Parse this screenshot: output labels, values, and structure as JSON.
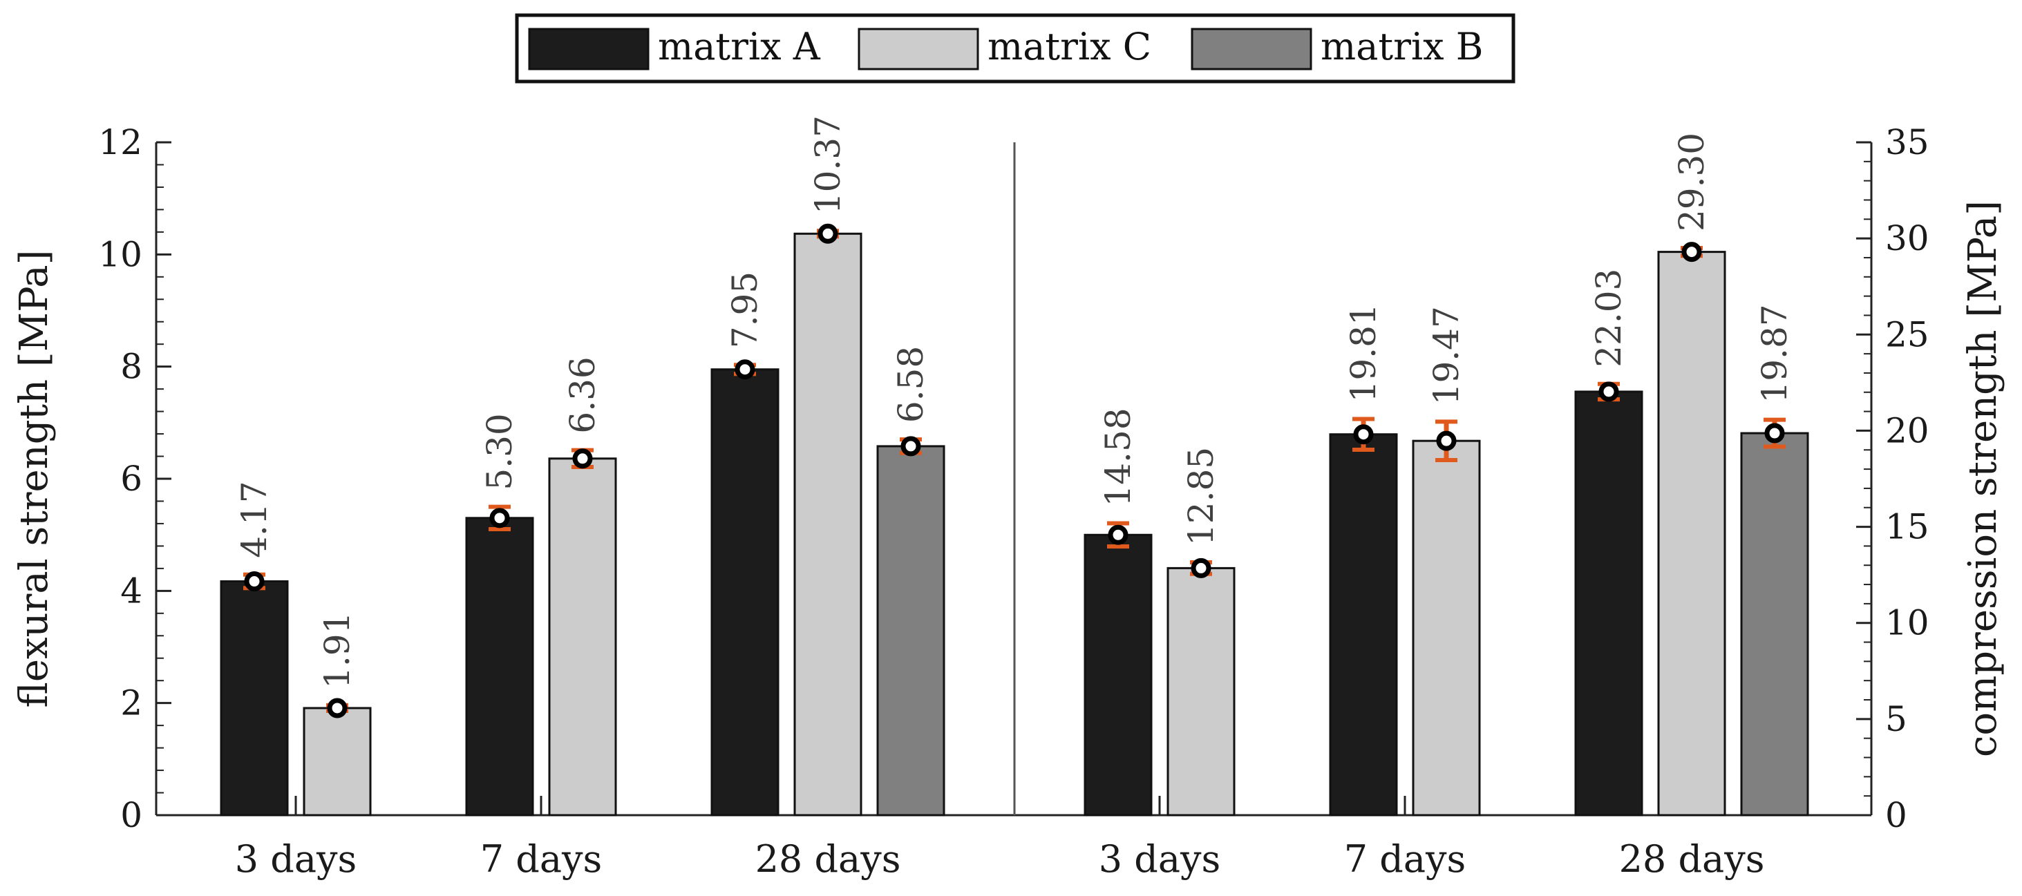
{
  "chart_data": {
    "type": "bar",
    "legend": {
      "placement": "top-center",
      "entries": [
        {
          "name": "matrix A",
          "color": "#1c1c1c"
        },
        {
          "name": "matrix C",
          "color": "#cccccc"
        },
        {
          "name": "matrix B",
          "color": "#808080"
        }
      ]
    },
    "series_order": [
      "matrix A",
      "matrix C",
      "matrix B"
    ],
    "error_bar_color": "#e05a1e",
    "panels": [
      {
        "name": "flexural",
        "axis": "left",
        "ylabel": "flexural strength [MPa]",
        "ylim": [
          0,
          12
        ],
        "yticks": [
          0,
          2,
          4,
          6,
          8,
          10,
          12
        ],
        "minor_step": 0.4,
        "categories": [
          "3 days",
          "7 days",
          "28 days"
        ],
        "groups": [
          {
            "category": "3 days",
            "bars": [
              {
                "series": "matrix A",
                "value": 4.17,
                "label": "4.17",
                "err": 0.12
              },
              {
                "series": "matrix C",
                "value": 1.91,
                "label": "1.91",
                "err": 0.05
              }
            ]
          },
          {
            "category": "7 days",
            "bars": [
              {
                "series": "matrix A",
                "value": 5.3,
                "label": "5.30",
                "err": 0.2
              },
              {
                "series": "matrix C",
                "value": 6.36,
                "label": "6.36",
                "err": 0.15
              }
            ]
          },
          {
            "category": "28 days",
            "bars": [
              {
                "series": "matrix A",
                "value": 7.95,
                "label": "7.95",
                "err": 0.08
              },
              {
                "series": "matrix C",
                "value": 10.37,
                "label": "10.37",
                "err": 0.05
              },
              {
                "series": "matrix B",
                "value": 6.58,
                "label": "6.58",
                "err": 0.12
              }
            ]
          }
        ]
      },
      {
        "name": "compression",
        "axis": "right",
        "ylabel": "compression strength [MPa]",
        "ylim": [
          0,
          35
        ],
        "yticks": [
          0,
          5,
          10,
          15,
          20,
          25,
          30,
          35
        ],
        "minor_step": 1,
        "categories": [
          "3 days",
          "7 days",
          "28 days"
        ],
        "groups": [
          {
            "category": "3 days",
            "bars": [
              {
                "series": "matrix A",
                "value": 14.58,
                "label": "14.58",
                "err": 0.6
              },
              {
                "series": "matrix C",
                "value": 12.85,
                "label": "12.85",
                "err": 0.3
              }
            ]
          },
          {
            "category": "7 days",
            "bars": [
              {
                "series": "matrix A",
                "value": 19.81,
                "label": "19.81",
                "err": 0.8
              },
              {
                "series": "matrix C",
                "value": 19.47,
                "label": "19.47",
                "err": 1.0
              }
            ]
          },
          {
            "category": "28 days",
            "bars": [
              {
                "series": "matrix A",
                "value": 22.03,
                "label": "22.03",
                "err": 0.4
              },
              {
                "series": "matrix C",
                "value": 29.3,
                "label": "29.30",
                "err": 0.2
              },
              {
                "series": "matrix B",
                "value": 19.87,
                "label": "19.87",
                "err": 0.7
              }
            ]
          }
        ]
      }
    ]
  }
}
